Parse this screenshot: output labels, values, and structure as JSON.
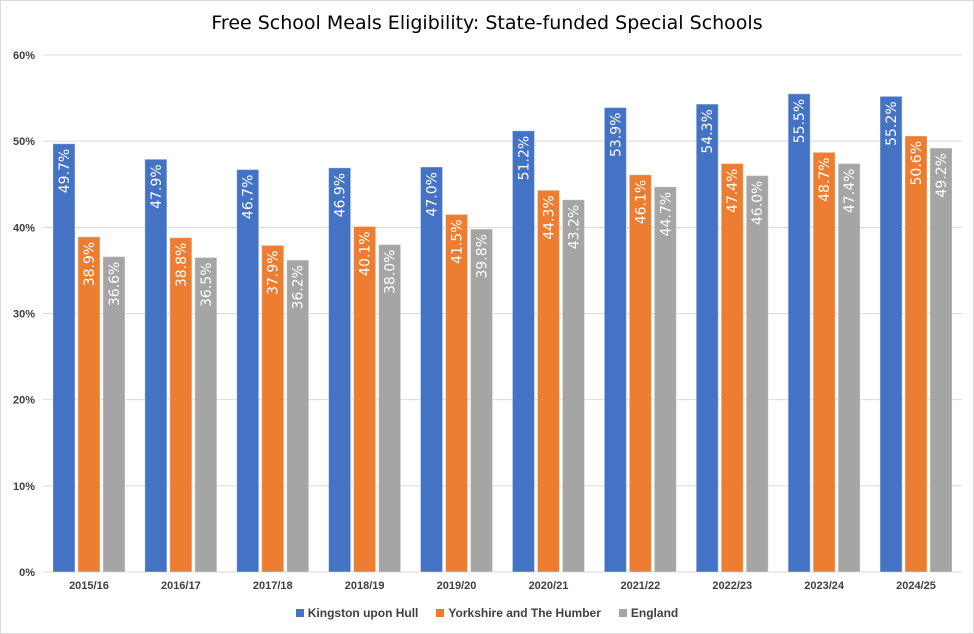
{
  "chart_data": {
    "type": "bar",
    "title": "Free School Meals Eligibility: State-funded Special Schools",
    "categories": [
      "2015/16",
      "2016/17",
      "2017/18",
      "2018/19",
      "2019/20",
      "2020/21",
      "2021/22",
      "2022/23",
      "2023/24",
      "2024/25"
    ],
    "series": [
      {
        "name": "Kingston upon Hull",
        "color": "#4472C4",
        "values": [
          49.7,
          47.9,
          46.7,
          46.9,
          47.0,
          51.2,
          53.9,
          54.3,
          55.5,
          55.2
        ]
      },
      {
        "name": "Yorkshire and The Humber",
        "color": "#ED7D31",
        "values": [
          38.9,
          38.8,
          37.9,
          40.1,
          41.5,
          44.3,
          46.1,
          47.4,
          48.7,
          50.6
        ]
      },
      {
        "name": "England",
        "color": "#A5A5A5",
        "values": [
          36.6,
          36.5,
          36.2,
          38.0,
          39.8,
          43.2,
          44.7,
          46.0,
          47.4,
          49.2
        ]
      }
    ],
    "ylim": [
      0,
      60
    ],
    "yticks": [
      "0%",
      "10%",
      "20%",
      "30%",
      "40%",
      "50%",
      "60%"
    ],
    "value_format": "percent, 1 decimal",
    "grid": "horizontal",
    "legend_position": "bottom",
    "xlabel": "",
    "ylabel": ""
  }
}
